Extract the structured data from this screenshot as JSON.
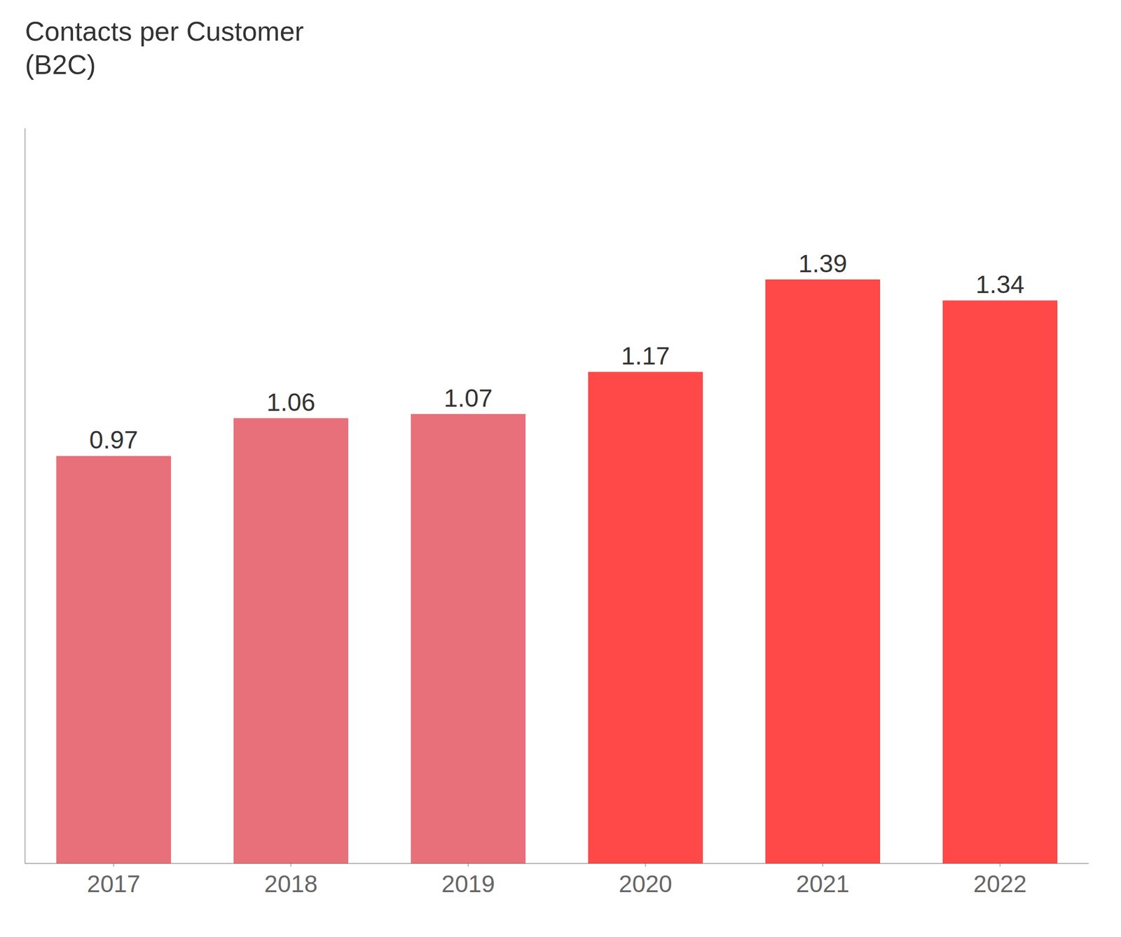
{
  "chart_data": {
    "type": "bar",
    "title": "Contacts per Customer",
    "subtitle": "(B2C)",
    "categories": [
      "2017",
      "2018",
      "2019",
      "2020",
      "2021",
      "2022"
    ],
    "values": [
      0.97,
      1.06,
      1.07,
      1.17,
      1.39,
      1.34
    ],
    "colors": [
      "#E8707A",
      "#E8707A",
      "#E8707A",
      "#FF4848",
      "#FF4848",
      "#FF4848"
    ],
    "ylim": [
      0,
      1.75
    ],
    "grid": false,
    "data_labels": true,
    "tick_labels": "x"
  }
}
